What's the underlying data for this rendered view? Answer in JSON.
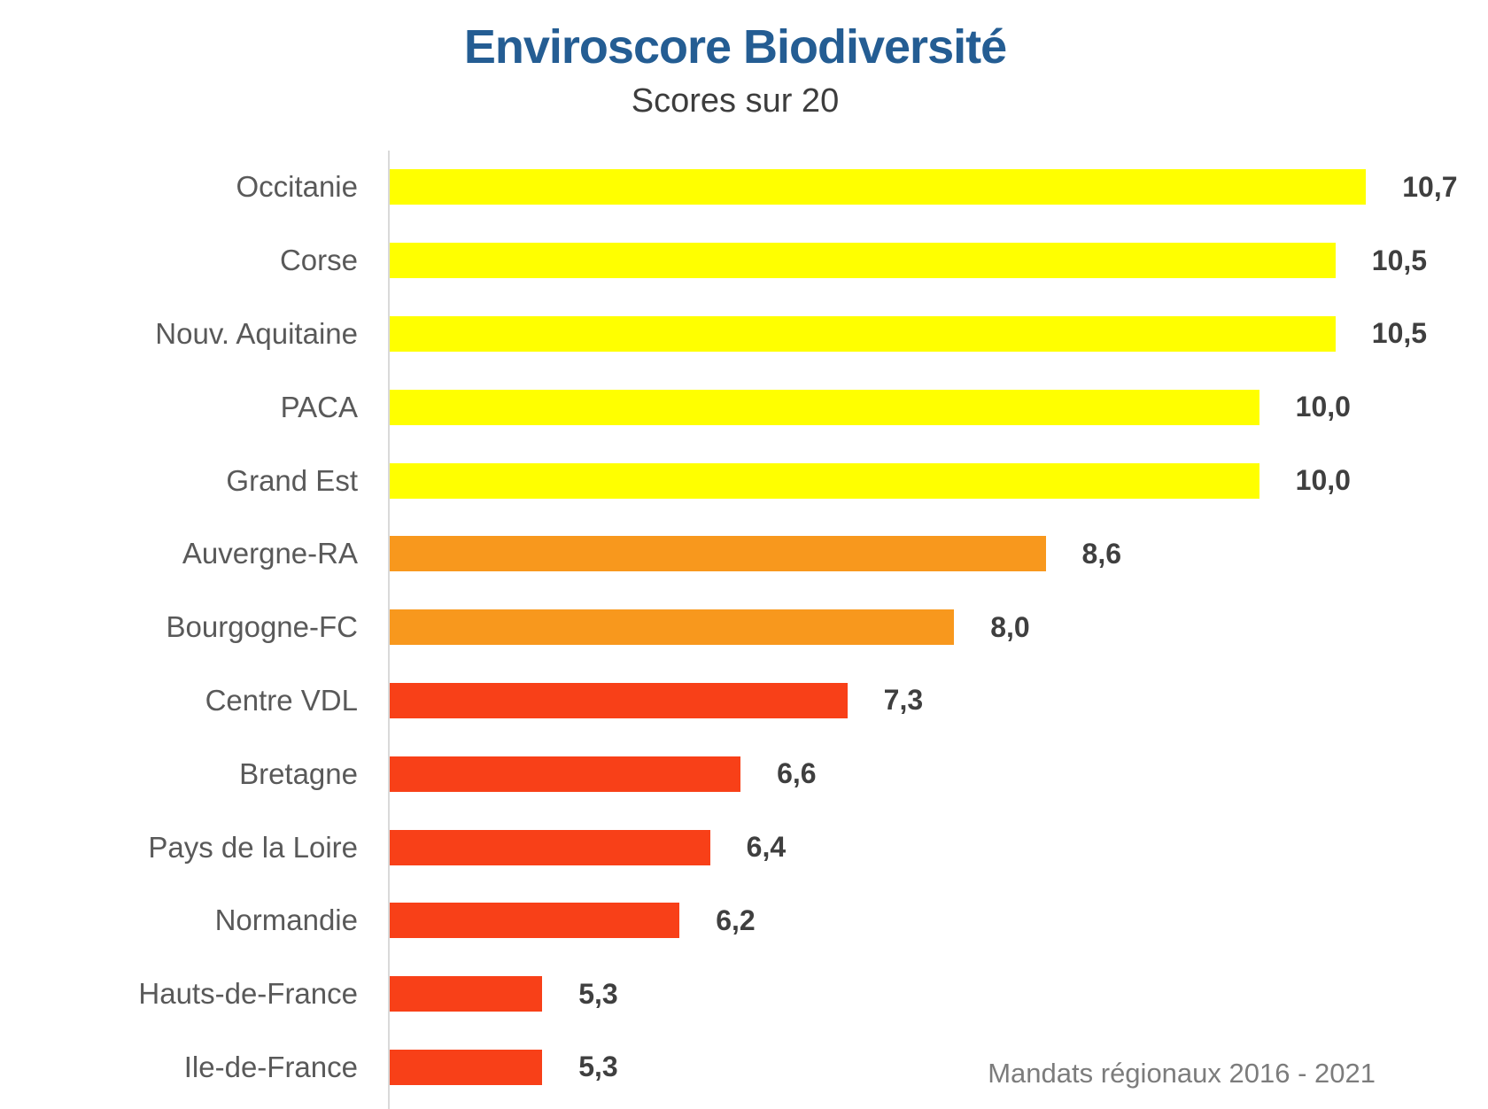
{
  "header": {
    "title": "Enviroscore Biodiversité",
    "subtitle": "Scores sur 20"
  },
  "footer": {
    "note": "Mandats régionaux 2016 - 2021"
  },
  "colors": {
    "title_blue": "#245D93",
    "subtitle_gray": "#3D3D3D",
    "category_gray": "#595959",
    "value_gray": "#3F3F3F",
    "footnote_gray": "#7C7C7C",
    "axis_gray": "#D9D9D9",
    "yellow": "#FFFF00",
    "orange": "#F8981D",
    "red": "#F84018"
  },
  "chart_data": {
    "type": "bar",
    "orientation": "horizontal",
    "title": "Enviroscore Biodiversité",
    "subtitle": "Scores sur 20",
    "annotation": "Mandats régionaux 2016 - 2021",
    "score_scale_max": 20,
    "categories": [
      "Occitanie",
      "Corse",
      "Nouv. Aquitaine",
      "PACA",
      "Grand Est",
      "Auvergne-RA",
      "Bourgogne-FC",
      "Centre VDL",
      "Bretagne",
      "Pays de la Loire",
      "Normandie",
      "Hauts-de-France",
      "Ile-de-France"
    ],
    "values": [
      10.7,
      10.5,
      10.5,
      10.0,
      10.0,
      8.6,
      8.0,
      7.3,
      6.6,
      6.4,
      6.2,
      5.3,
      5.3
    ],
    "value_labels": [
      "10,7",
      "10,5",
      "10,5",
      "10,0",
      "10,0",
      "8,6",
      "8,0",
      "7,3",
      "6,6",
      "6,4",
      "6,2",
      "5,3",
      "5,3"
    ],
    "bar_colors": [
      "yellow",
      "yellow",
      "yellow",
      "yellow",
      "yellow",
      "orange",
      "orange",
      "red",
      "red",
      "red",
      "red",
      "red",
      "red"
    ],
    "xlim": [
      4.3,
      11.5
    ],
    "grid": false,
    "legend": false,
    "value_label_position": "outside-end"
  }
}
